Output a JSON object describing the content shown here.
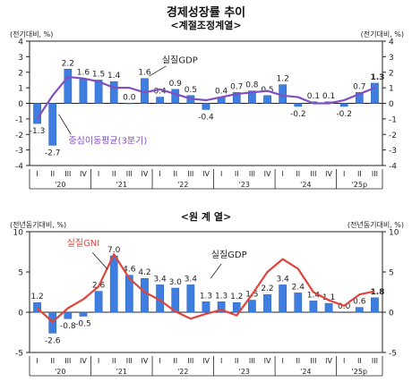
{
  "header": {
    "title": "경제성장률 추이",
    "subtitle_top": "<계절조정계열>",
    "subtitle_bottom": "<원 계 열>"
  },
  "chart_data": [
    {
      "type": "bar",
      "name": "계절조정계열",
      "ylabel_left": "(전기대비, %)",
      "ylabel_right": "(전기대비, %)",
      "ylim": [
        -4,
        4
      ],
      "yticks": [
        -4,
        -3,
        -2,
        -1,
        0,
        1,
        2,
        3,
        4
      ],
      "quarter_labels": [
        "I",
        "II",
        "III",
        "IV",
        "I",
        "II",
        "III",
        "IV",
        "I",
        "II",
        "III",
        "IV",
        "I",
        "II",
        "III",
        "IV",
        "I",
        "II",
        "III",
        "IV",
        "I",
        "II",
        "III"
      ],
      "year_labels": [
        "'20",
        "'21",
        "'22",
        "'23",
        "'24",
        "'25p"
      ],
      "series": [
        {
          "name": "실질GDP",
          "values": [
            -1.3,
            -2.7,
            2.2,
            1.6,
            1.5,
            1.4,
            0.0,
            1.6,
            0.4,
            0.9,
            0.5,
            -0.4,
            0.4,
            0.7,
            0.8,
            0.5,
            1.2,
            -0.2,
            0.1,
            0.1,
            -0.2,
            0.7,
            1.3
          ],
          "color": "#3d7ee0"
        },
        {
          "name": "중심이동평균(3분기)",
          "values": [
            -1.0,
            0.5,
            1.7,
            1.6,
            1.4,
            1.0,
            1.0,
            0.7,
            0.9,
            0.6,
            0.3,
            0.2,
            0.4,
            0.6,
            0.7,
            0.8,
            0.5,
            0.4,
            0.0,
            0.0,
            0.2,
            0.6,
            1.0
          ],
          "color": "#8050c0"
        }
      ],
      "annotations": [
        "실질GDP",
        "중심이동평균(3분기)"
      ]
    },
    {
      "type": "bar",
      "name": "원계열",
      "ylabel_left": "(전년동기대비, %)",
      "ylabel_right": "(전년동기대비, %)",
      "ylim": [
        -5,
        10
      ],
      "yticks": [
        -5,
        0,
        5,
        10
      ],
      "quarter_labels": [
        "I",
        "II",
        "III",
        "IV",
        "I",
        "II",
        "III",
        "IV",
        "I",
        "II",
        "III",
        "IV",
        "I",
        "II",
        "III",
        "IV",
        "I",
        "II",
        "III",
        "IV",
        "I",
        "II",
        "III"
      ],
      "year_labels": [
        "'20",
        "'21",
        "'22",
        "'23",
        "'24",
        "'25p"
      ],
      "series": [
        {
          "name": "실질GDP",
          "values": [
            1.2,
            -2.6,
            -0.8,
            -0.5,
            2.6,
            7.0,
            4.6,
            4.2,
            3.4,
            3.0,
            3.4,
            1.3,
            1.3,
            1.2,
            1.5,
            2.2,
            3.4,
            2.4,
            1.4,
            1.1,
            0.0,
            0.6,
            1.8
          ],
          "color": "#3d7ee0"
        },
        {
          "name": "실질GNI",
          "values": [
            0.5,
            -1.2,
            0.5,
            1.6,
            3.2,
            7.2,
            4.2,
            2.5,
            1.5,
            0.1,
            -0.8,
            -0.2,
            0.3,
            -0.4,
            2.2,
            5.0,
            6.6,
            5.4,
            2.5,
            1.5,
            0.8,
            2.2,
            2.6
          ],
          "color": "#e0453d"
        }
      ],
      "annotations": [
        "실질GNI",
        "실질GDP"
      ]
    }
  ]
}
